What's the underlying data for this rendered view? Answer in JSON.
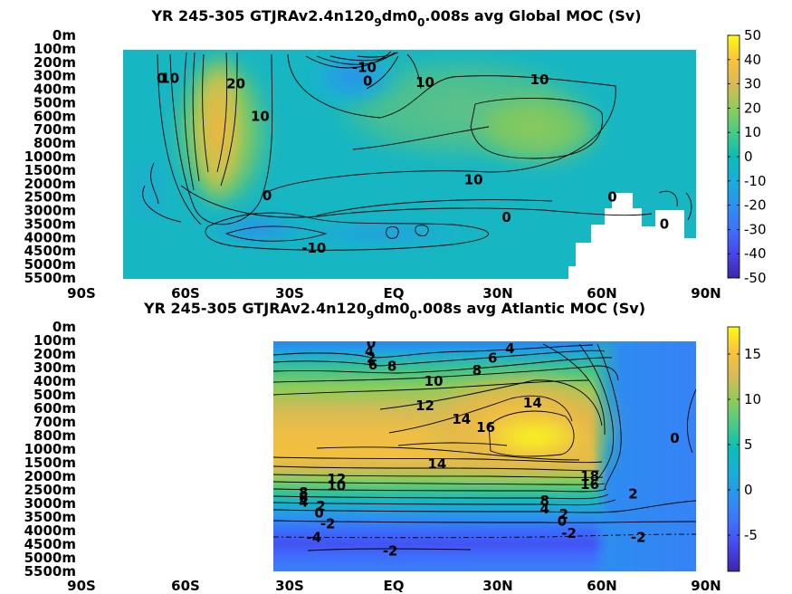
{
  "chart_data": [
    {
      "type": "heatmap",
      "id": "global",
      "title_parts": {
        "main": "YR 245-305 GTJRAv2.4n120",
        "sub1": "9",
        "mid": "dm0",
        "sub2": "0",
        "end": ".008s avg  Global MOC (Sv)"
      },
      "xlabel": "",
      "ylabel": "",
      "xlim": [
        -90,
        90
      ],
      "x_ticks": [
        -90,
        -60,
        -30,
        0,
        30,
        60,
        90
      ],
      "x_tick_labels": [
        "90S",
        "60S",
        "30S",
        "EQ",
        "30N",
        "60N",
        "90N"
      ],
      "y_tick_labels": [
        "0m",
        "100m",
        "200m",
        "300m",
        "400m",
        "500m",
        "600m",
        "700m",
        "800m",
        "1000m",
        "1500m",
        "2000m",
        "2500m",
        "3000m",
        "3500m",
        "4000m",
        "4500m",
        "5000m",
        "5500m"
      ],
      "colorbar": {
        "min": -50,
        "max": 50,
        "ticks": [
          50,
          40,
          30,
          20,
          10,
          0,
          -10,
          -20,
          -30,
          -40,
          -50
        ],
        "tick_labels": [
          "50",
          "40",
          "30",
          "20",
          "10",
          "0",
          "-10",
          "-20",
          "-30",
          "-40",
          "-50"
        ]
      },
      "features": [
        {
          "lat": -44,
          "level": 3.5,
          "val": 38,
          "sx": 5,
          "sy": 6
        },
        {
          "lat": -41,
          "level": 1.5,
          "val": 12,
          "sx": 4,
          "sy": 3
        },
        {
          "lat": -18,
          "level": 3,
          "val": -14,
          "sx": 9,
          "sy": 2.5
        },
        {
          "lat": -2,
          "level": 1.2,
          "val": -22,
          "sx": 2.5,
          "sy": 1.6
        },
        {
          "lat": 30,
          "level": 5,
          "val": 10,
          "sx": 32,
          "sy": 6
        },
        {
          "lat": 42,
          "level": 8,
          "val": 12,
          "sx": 12,
          "sy": 2.5
        },
        {
          "lat": 15,
          "level": 11,
          "val": 4,
          "sx": 40,
          "sy": 2
        },
        {
          "lat": -28,
          "level": 15.3,
          "val": -15,
          "sx": 12,
          "sy": 1.8
        },
        {
          "lat": 5,
          "level": 15.3,
          "val": -8,
          "sx": 35,
          "sy": 2
        }
      ],
      "contour_labels": [
        {
          "text": "0",
          "lat": -67,
          "level": 3.2
        },
        {
          "text": "10",
          "lat": -64.5,
          "level": 3.2
        },
        {
          "text": "20",
          "lat": -45.5,
          "level": 3.6
        },
        {
          "text": "10",
          "lat": -38.5,
          "level": 6
        },
        {
          "text": "-10",
          "lat": -8.5,
          "level": 2.4
        },
        {
          "text": "0",
          "lat": -7.5,
          "level": 3.4
        },
        {
          "text": "10",
          "lat": 9,
          "level": 3.5
        },
        {
          "text": "10",
          "lat": 42,
          "level": 3.3
        },
        {
          "text": "10",
          "lat": 23,
          "level": 10.7
        },
        {
          "text": "0",
          "lat": -36.5,
          "level": 11.9
        },
        {
          "text": "0",
          "lat": 32.5,
          "level": 13.5
        },
        {
          "text": "0",
          "lat": 63,
          "level": 12
        },
        {
          "text": "0",
          "lat": 78,
          "level": 14
        },
        {
          "text": "-10",
          "lat": -23,
          "level": 15.8
        }
      ]
    },
    {
      "type": "heatmap",
      "id": "atlantic",
      "title_parts": {
        "main": "YR 245-305 GTJRAv2.4n120",
        "sub1": "9",
        "mid": "dm0",
        "sub2": "0",
        "end": ".008s avg  Atlantic MOC (Sv)"
      },
      "xlabel": "",
      "ylabel": "",
      "xlim": [
        -90,
        90
      ],
      "x_ticks": [
        -90,
        -60,
        -30,
        0,
        30,
        60,
        90
      ],
      "x_tick_labels": [
        "90S",
        "60S",
        "30S",
        "EQ",
        "30N",
        "60N",
        "90N"
      ],
      "y_tick_labels": [
        "0m",
        "100m",
        "200m",
        "300m",
        "400m",
        "500m",
        "600m",
        "700m",
        "800m",
        "1000m",
        "1500m",
        "2000m",
        "2500m",
        "3000m",
        "3500m",
        "4000m",
        "4500m",
        "5000m",
        "5500m"
      ],
      "colorbar": {
        "min": -9,
        "max": 18,
        "ticks": [
          15,
          10,
          5,
          0,
          -5
        ],
        "tick_labels": [
          "15",
          "10",
          "5",
          "0",
          "-5"
        ]
      },
      "contour_labels": [
        {
          "text": "0",
          "lat": -6.5,
          "level": 1.2
        },
        {
          "text": "4",
          "lat": -7,
          "level": 1.8
        },
        {
          "text": "2",
          "lat": -6.5,
          "level": 2.3
        },
        {
          "text": "6",
          "lat": -6,
          "level": 2.8
        },
        {
          "text": "8",
          "lat": -0.5,
          "level": 2.9
        },
        {
          "text": "6",
          "lat": 28.5,
          "level": 2.3
        },
        {
          "text": "4",
          "lat": 33.5,
          "level": 1.6
        },
        {
          "text": "8",
          "lat": 24,
          "level": 3.2
        },
        {
          "text": "10",
          "lat": 11.5,
          "level": 4
        },
        {
          "text": "12",
          "lat": 9,
          "level": 5.8
        },
        {
          "text": "14",
          "lat": 19.5,
          "level": 6.8
        },
        {
          "text": "16",
          "lat": 26.5,
          "level": 7.4
        },
        {
          "text": "14",
          "lat": 40,
          "level": 5.6
        },
        {
          "text": "14",
          "lat": 12.5,
          "level": 10.1
        },
        {
          "text": "12",
          "lat": -16.5,
          "level": 11.2
        },
        {
          "text": "10",
          "lat": -16.5,
          "level": 11.7
        },
        {
          "text": "8",
          "lat": -26,
          "level": 12.2
        },
        {
          "text": "6",
          "lat": -26,
          "level": 12.6
        },
        {
          "text": "4",
          "lat": -26,
          "level": 12.9
        },
        {
          "text": "2",
          "lat": -21,
          "level": 13.2
        },
        {
          "text": "0",
          "lat": -21.5,
          "level": 13.7
        },
        {
          "text": "-2",
          "lat": -19,
          "level": 14.5
        },
        {
          "text": "-4",
          "lat": -23,
          "level": 15.5
        },
        {
          "text": "-2",
          "lat": -1,
          "level": 16.5
        },
        {
          "text": "18",
          "lat": 56.5,
          "level": 11
        },
        {
          "text": "16",
          "lat": 56.5,
          "level": 11.6
        },
        {
          "text": "8",
          "lat": 43.5,
          "level": 12.8
        },
        {
          "text": "4",
          "lat": 43.5,
          "level": 13.4
        },
        {
          "text": "2",
          "lat": 49,
          "level": 13.8
        },
        {
          "text": "0",
          "lat": 48.5,
          "level": 14.3
        },
        {
          "text": "-2",
          "lat": 50.5,
          "level": 15.2
        },
        {
          "text": "2",
          "lat": 69,
          "level": 12.3
        },
        {
          "text": "0",
          "lat": 81,
          "level": 8.2
        },
        {
          "text": "-2",
          "lat": 70.5,
          "level": 15.5
        }
      ]
    }
  ]
}
